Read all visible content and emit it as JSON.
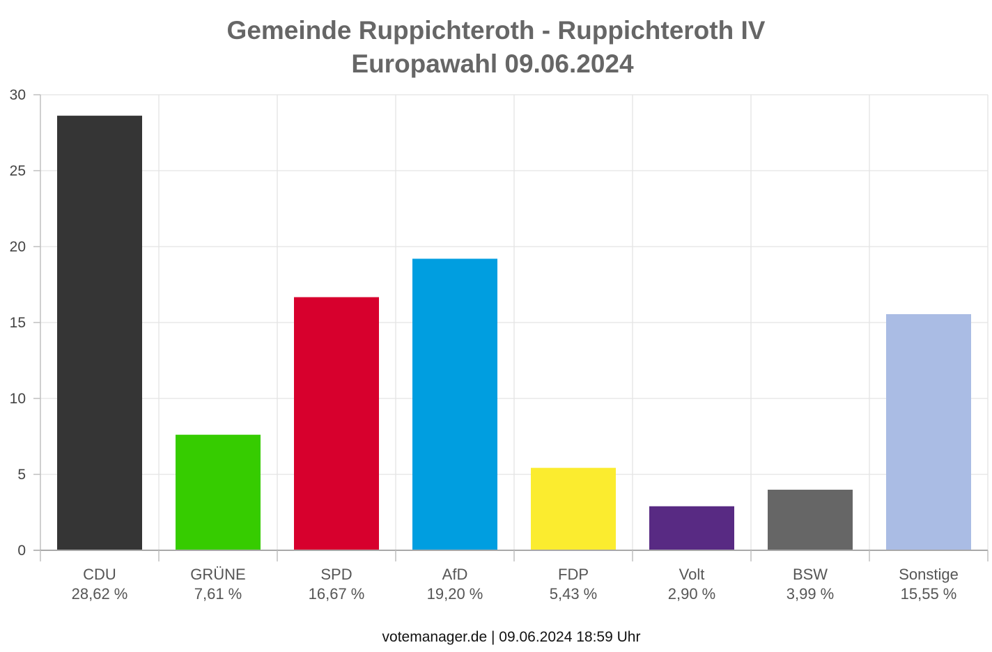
{
  "chart_data": {
    "type": "bar",
    "title": "Gemeinde Ruppichteroth - Ruppichteroth IV",
    "subtitle": "Europawahl 09.06.2024",
    "categories": [
      "CDU",
      "GRÜNE",
      "SPD",
      "AfD",
      "FDP",
      "Volt",
      "BSW",
      "Sonstige"
    ],
    "values": [
      28.62,
      7.61,
      16.67,
      19.2,
      5.43,
      2.9,
      3.99,
      15.55
    ],
    "value_labels": [
      "28,62 %",
      "7,61 %",
      "16,67 %",
      "19,20 %",
      "5,43 %",
      "2,90 %",
      "3,99 %",
      "15,55 %"
    ],
    "colors": [
      "#353535",
      "#36cc00",
      "#d7002d",
      "#009ee0",
      "#fbec2f",
      "#582a83",
      "#666666",
      "#aabce4"
    ],
    "ylim": [
      0,
      30
    ],
    "yticks": [
      "0",
      "5",
      "10",
      "15",
      "20",
      "25",
      "30"
    ],
    "grid": true,
    "xlabel": "",
    "ylabel": ""
  },
  "footer": "votemanager.de | 09.06.2024 18:59 Uhr"
}
